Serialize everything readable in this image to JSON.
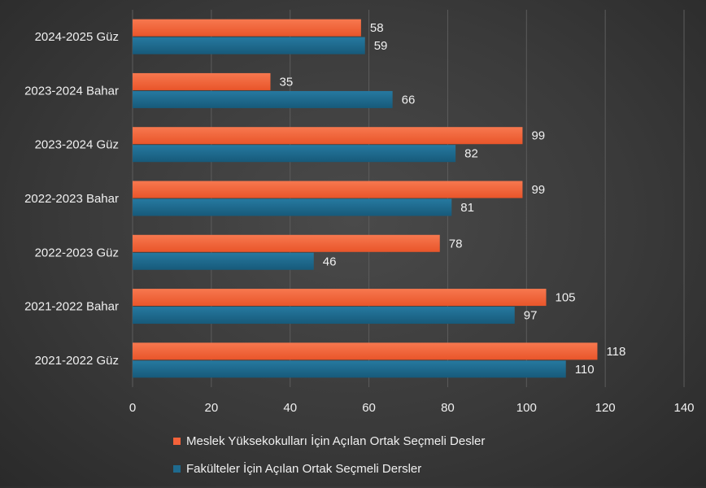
{
  "chart_data": {
    "type": "bar",
    "orientation": "horizontal",
    "categories": [
      "2024-2025 Güz",
      "2023-2024 Bahar",
      "2023-2024 Güz",
      "2022-2023 Bahar",
      "2022-2023 Güz",
      "2021-2022 Bahar",
      "2021-2022 Güz"
    ],
    "series": [
      {
        "name": "Meslek Yüksekokulları İçin Açılan Ortak Seçmeli Desler",
        "color": "#f4623a",
        "values": [
          58,
          35,
          99,
          99,
          78,
          105,
          118
        ]
      },
      {
        "name": "Fakülteler İçin Açılan Ortak Seçmeli Dersler",
        "color": "#1f6a8e",
        "values": [
          59,
          66,
          82,
          81,
          46,
          97,
          110
        ]
      }
    ],
    "xlim": [
      0,
      140
    ],
    "xticks": [
      "0",
      "20",
      "40",
      "60",
      "80",
      "100",
      "120",
      "140"
    ],
    "grid": true,
    "legend_position": "bottom",
    "title": "",
    "xlabel": "",
    "ylabel": ""
  }
}
